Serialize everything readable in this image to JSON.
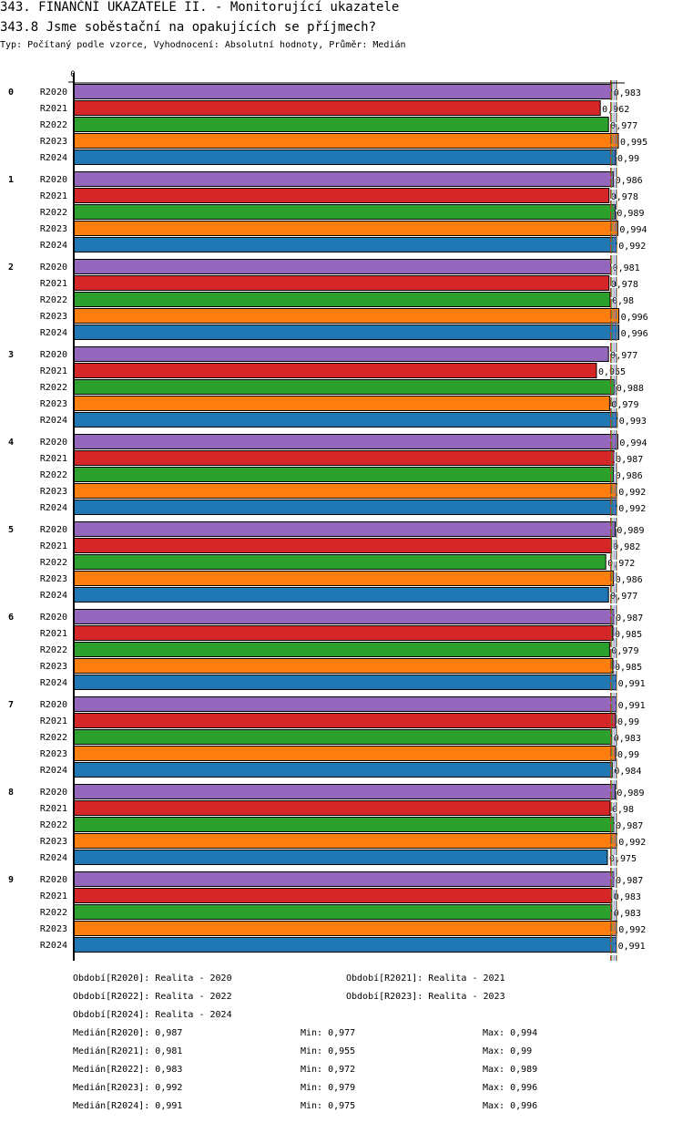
{
  "header": {
    "title": "343. FINANČNÍ UKAZATELE II. - Monitorující ukazatele",
    "question": "343.8 Jsme soběstační na opakujících se příjmech?",
    "subtitle": "Typ: Počítaný podle vzorce, Vyhodnocení: Absolutní hodnoty, Průměr: Medián"
  },
  "chart_data": {
    "type": "bar",
    "orientation": "horizontal",
    "title": "343.8 Jsme soběstační na opakujících se příjmech?",
    "xlabel": "",
    "ylabel": "",
    "x_tick_labels": [
      "0"
    ],
    "xlim": [
      0,
      1
    ],
    "grid": false,
    "categories": [
      "0",
      "1",
      "2",
      "3",
      "4",
      "5",
      "6",
      "7",
      "8",
      "9"
    ],
    "series": [
      {
        "name": "R2020",
        "color": "#9467bd",
        "values": [
          0.983,
          0.986,
          0.981,
          0.977,
          0.994,
          0.989,
          0.987,
          0.991,
          0.989,
          0.987
        ],
        "labels": [
          "0,983",
          "0,986",
          "0,981",
          "0,977",
          "0,994",
          "0,989",
          "0,987",
          "0,991",
          "0,989",
          "0,987"
        ],
        "median": 0.987
      },
      {
        "name": "R2021",
        "color": "#d62728",
        "values": [
          0.962,
          0.978,
          0.978,
          0.955,
          0.987,
          0.982,
          0.985,
          0.99,
          0.98,
          0.983
        ],
        "labels": [
          "0,962",
          "0,978",
          "0,978",
          "0,955",
          "0,987",
          "0,982",
          "0,985",
          "0,99",
          "0,98",
          "0,983"
        ],
        "median": 0.981
      },
      {
        "name": "R2022",
        "color": "#2ca02c",
        "values": [
          0.977,
          0.989,
          0.98,
          0.988,
          0.986,
          0.972,
          0.979,
          0.983,
          0.987,
          0.983
        ],
        "labels": [
          "0,977",
          "0,989",
          "0,98",
          "0,988",
          "0,986",
          "0,972",
          "0,979",
          "0,983",
          "0,987",
          "0,983"
        ],
        "median": 0.983
      },
      {
        "name": "R2023",
        "color": "#ff7f0e",
        "values": [
          0.995,
          0.994,
          0.996,
          0.979,
          0.992,
          0.986,
          0.985,
          0.99,
          0.992,
          0.992
        ],
        "labels": [
          "0,995",
          "0,994",
          "0,996",
          "0,979",
          "0,992",
          "0,986",
          "0,985",
          "0,99",
          "0,992",
          "0,992"
        ],
        "median": 0.992
      },
      {
        "name": "R2024",
        "color": "#1f77b4",
        "values": [
          0.99,
          0.992,
          0.996,
          0.993,
          0.992,
          0.977,
          0.991,
          0.984,
          0.975,
          0.991
        ],
        "labels": [
          "0,99",
          "0,992",
          "0,996",
          "0,993",
          "0,992",
          "0,977",
          "0,991",
          "0,984",
          "0,975",
          "0,991"
        ],
        "median": 0.991
      }
    ],
    "legend": [
      {
        "text": "Období[R2020]: Realita - 2020"
      },
      {
        "text": "Období[R2021]: Realita - 2021"
      },
      {
        "text": "Období[R2022]: Realita - 2022"
      },
      {
        "text": "Období[R2023]: Realita - 2023"
      },
      {
        "text": "Období[R2024]: Realita - 2024"
      }
    ],
    "legend_position": "bottom",
    "stats": [
      {
        "median": "Medián[R2020]: 0,987",
        "min": "Min: 0,977",
        "max": "Max: 0,994"
      },
      {
        "median": "Medián[R2021]: 0,981",
        "min": "Min: 0,955",
        "max": "Max: 0,99"
      },
      {
        "median": "Medián[R2022]: 0,983",
        "min": "Min: 0,972",
        "max": "Max: 0,989"
      },
      {
        "median": "Medián[R2023]: 0,992",
        "min": "Min: 0,979",
        "max": "Max: 0,996"
      },
      {
        "median": "Medián[R2024]: 0,991",
        "min": "Min: 0,975",
        "max": "Max: 0,996"
      }
    ]
  }
}
